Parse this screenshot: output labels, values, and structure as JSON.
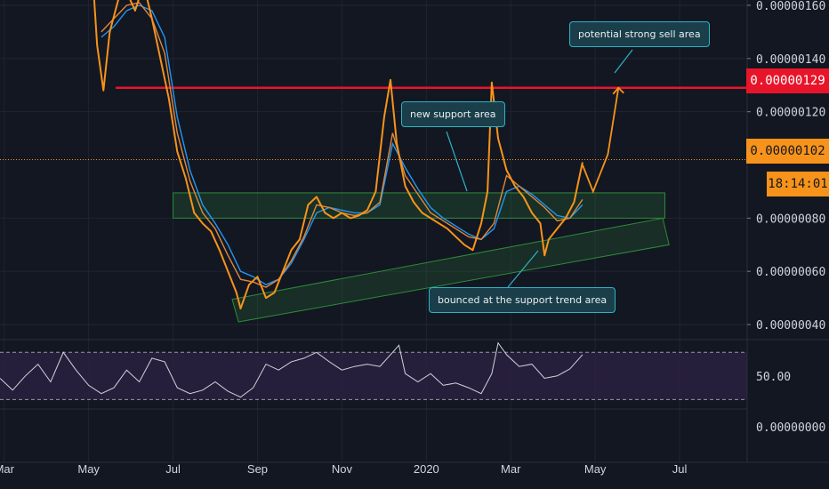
{
  "chart_data": {
    "type": "line",
    "title": "",
    "price_axis": {
      "ticks": [
        "0.00000160",
        "0.00000140",
        "0.00000120",
        "0.00000080",
        "0.00000060",
        "0.00000040"
      ],
      "tick_values": [
        160,
        140,
        120,
        80,
        60,
        40
      ],
      "ylim": [
        35,
        162
      ],
      "unit_note": "values in x1e-8"
    },
    "time_axis": {
      "ticks": [
        "Mar",
        "May",
        "Jul",
        "Sep",
        "Nov",
        "2020",
        "Mar",
        "May",
        "Jul"
      ],
      "tick_month_index": [
        0,
        2,
        4,
        6,
        8,
        10,
        12,
        14,
        16
      ],
      "xlim": [
        -0.1,
        17.6
      ]
    },
    "price_series": {
      "name": "",
      "color": "#f7931a",
      "x": [
        2.1,
        2.2,
        2.35,
        2.5,
        2.7,
        2.9,
        3.1,
        3.3,
        3.5,
        3.7,
        3.9,
        4.0,
        4.1,
        4.3,
        4.5,
        4.7,
        4.9,
        5.1,
        5.3,
        5.5,
        5.6,
        5.8,
        6.0,
        6.2,
        6.4,
        6.6,
        6.8,
        7.0,
        7.2,
        7.4,
        7.6,
        7.8,
        8.0,
        8.2,
        8.4,
        8.6,
        8.8,
        9.0,
        9.15,
        9.3,
        9.5,
        9.7,
        9.9,
        10.1,
        10.3,
        10.5,
        10.7,
        10.9,
        11.1,
        11.3,
        11.45,
        11.55,
        11.7,
        11.9,
        12.1,
        12.3,
        12.5,
        12.7,
        12.8,
        12.9,
        13.1,
        13.3,
        13.5,
        13.7
      ],
      "y": [
        170,
        145,
        128,
        150,
        162,
        165,
        158,
        168,
        155,
        140,
        125,
        115,
        105,
        95,
        82,
        78,
        75,
        68,
        60,
        52,
        46,
        55,
        58,
        50,
        52,
        60,
        68,
        72,
        85,
        88,
        82,
        80,
        82,
        80,
        81,
        83,
        90,
        118,
        132,
        108,
        92,
        86,
        82,
        80,
        78,
        76,
        73,
        70,
        68,
        78,
        90,
        131,
        110,
        98,
        92,
        88,
        82,
        78,
        66,
        72,
        76,
        80,
        86,
        101
      ]
    },
    "ma_fast": {
      "name": "",
      "color": "#e0883a",
      "x": [
        2.3,
        2.6,
        2.9,
        3.2,
        3.5,
        3.8,
        4.1,
        4.4,
        4.7,
        5.0,
        5.3,
        5.6,
        5.9,
        6.2,
        6.5,
        6.8,
        7.1,
        7.4,
        7.7,
        8.0,
        8.3,
        8.6,
        8.9,
        9.2,
        9.5,
        9.8,
        10.1,
        10.4,
        10.7,
        11.0,
        11.3,
        11.6,
        11.9,
        12.2,
        12.5,
        12.8,
        13.1,
        13.4,
        13.7
      ],
      "y": [
        150,
        155,
        160,
        161,
        155,
        142,
        112,
        94,
        82,
        76,
        66,
        57,
        56,
        54,
        57,
        64,
        73,
        85,
        84,
        82,
        81,
        82,
        86,
        112,
        96,
        89,
        82,
        79,
        76,
        73,
        72,
        78,
        96,
        92,
        88,
        84,
        79,
        80,
        87
      ]
    },
    "ma_slow": {
      "name": "",
      "color": "#2196f3",
      "x": [
        2.3,
        2.6,
        2.9,
        3.2,
        3.5,
        3.8,
        4.1,
        4.4,
        4.7,
        5.0,
        5.3,
        5.6,
        5.9,
        6.2,
        6.5,
        6.8,
        7.1,
        7.4,
        7.7,
        8.0,
        8.3,
        8.6,
        8.9,
        9.2,
        9.5,
        9.8,
        10.1,
        10.4,
        10.7,
        11.0,
        11.3,
        11.6,
        11.9,
        12.2,
        12.5,
        12.8,
        13.1,
        13.4,
        13.7
      ],
      "y": [
        148,
        152,
        158,
        160,
        158,
        148,
        118,
        98,
        85,
        78,
        70,
        60,
        58,
        55,
        57,
        63,
        72,
        82,
        84,
        83,
        82,
        82,
        85,
        108,
        99,
        91,
        84,
        80,
        77,
        74,
        72,
        76,
        90,
        92,
        89,
        85,
        81,
        80,
        85
      ]
    },
    "projection": {
      "color": "#f7931a",
      "x": [
        13.7,
        13.95,
        14.3,
        14.55
      ],
      "y": [
        100,
        90,
        104,
        129
      ]
    },
    "horizontal_level": {
      "value": 129,
      "color": "#e8152a",
      "label": "0.00000129"
    },
    "last_price_line": {
      "value": 102,
      "color": "#f7931a",
      "label": "0.00000102"
    },
    "countdown": "18:14:01",
    "support_zone": {
      "x": [
        4.0,
        15.65
      ],
      "y": [
        80,
        89.5
      ],
      "color": "#2e8b3a"
    },
    "trend_channel": {
      "lower": {
        "x": [
          5.55,
          15.75
        ],
        "y": [
          41,
          70
        ]
      },
      "upper": {
        "x": [
          5.4,
          15.6
        ],
        "y": [
          49.5,
          80
        ]
      },
      "color": "#2e8b3a"
    },
    "annotations": {
      "sell": "potential strong sell area",
      "support": "new support area",
      "trend": "bounced at the support trend area"
    },
    "rsi": {
      "ticks": [
        "50.00"
      ],
      "lower_axis_label": "0.00000000",
      "upper_band": 70,
      "lower_band": 30,
      "ylim": [
        22,
        80
      ],
      "line_color": "#d1d4dc",
      "band_color": "#2a2140",
      "x": [
        -0.1,
        0.2,
        0.5,
        0.8,
        1.1,
        1.4,
        1.7,
        2.0,
        2.3,
        2.6,
        2.9,
        3.2,
        3.5,
        3.8,
        4.1,
        4.4,
        4.7,
        5.0,
        5.3,
        5.6,
        5.9,
        6.2,
        6.5,
        6.8,
        7.1,
        7.4,
        7.7,
        8.0,
        8.3,
        8.6,
        8.9,
        9.2,
        9.35,
        9.5,
        9.8,
        10.1,
        10.4,
        10.7,
        11.0,
        11.3,
        11.55,
        11.7,
        11.9,
        12.2,
        12.5,
        12.8,
        13.1,
        13.4,
        13.7
      ],
      "y": [
        48,
        38,
        50,
        60,
        45,
        70,
        55,
        42,
        35,
        40,
        55,
        45,
        65,
        62,
        40,
        35,
        38,
        45,
        37,
        32,
        40,
        60,
        55,
        62,
        65,
        70,
        62,
        55,
        58,
        60,
        58,
        70,
        76,
        52,
        45,
        52,
        42,
        44,
        40,
        35,
        52,
        78,
        68,
        58,
        60,
        48,
        50,
        56,
        68
      ]
    }
  }
}
